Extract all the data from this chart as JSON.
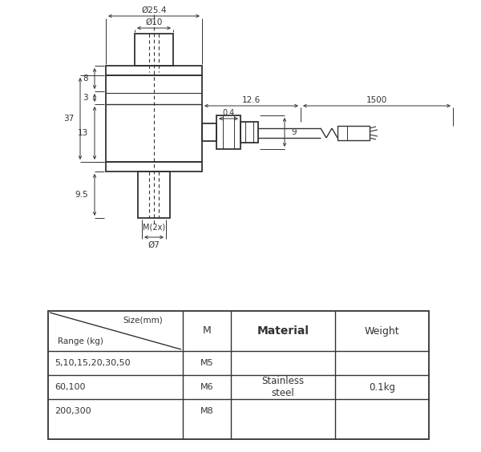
{
  "bg_color": "#ffffff",
  "line_color": "#333333",
  "fig_width": 6.0,
  "fig_height": 5.64,
  "dpi": 100,
  "table": {
    "rows": [
      [
        "5,10,15,20,30,50",
        "M5"
      ],
      [
        "60,100",
        "M6"
      ],
      [
        "200,300",
        "M8"
      ]
    ],
    "material": "Stainless\nsteel",
    "weight": "0.1kg"
  },
  "dims": {
    "phi254": "Ø25.4",
    "phi10": "Ø10",
    "d8": "8",
    "d3": "3",
    "d37": "37",
    "d13": "13",
    "d95": "9.5",
    "d126": "12.6",
    "d1500": "1500",
    "d04": "0.4",
    "d9": "9",
    "m2x": "M(2x)",
    "phi7": "Ø7"
  }
}
